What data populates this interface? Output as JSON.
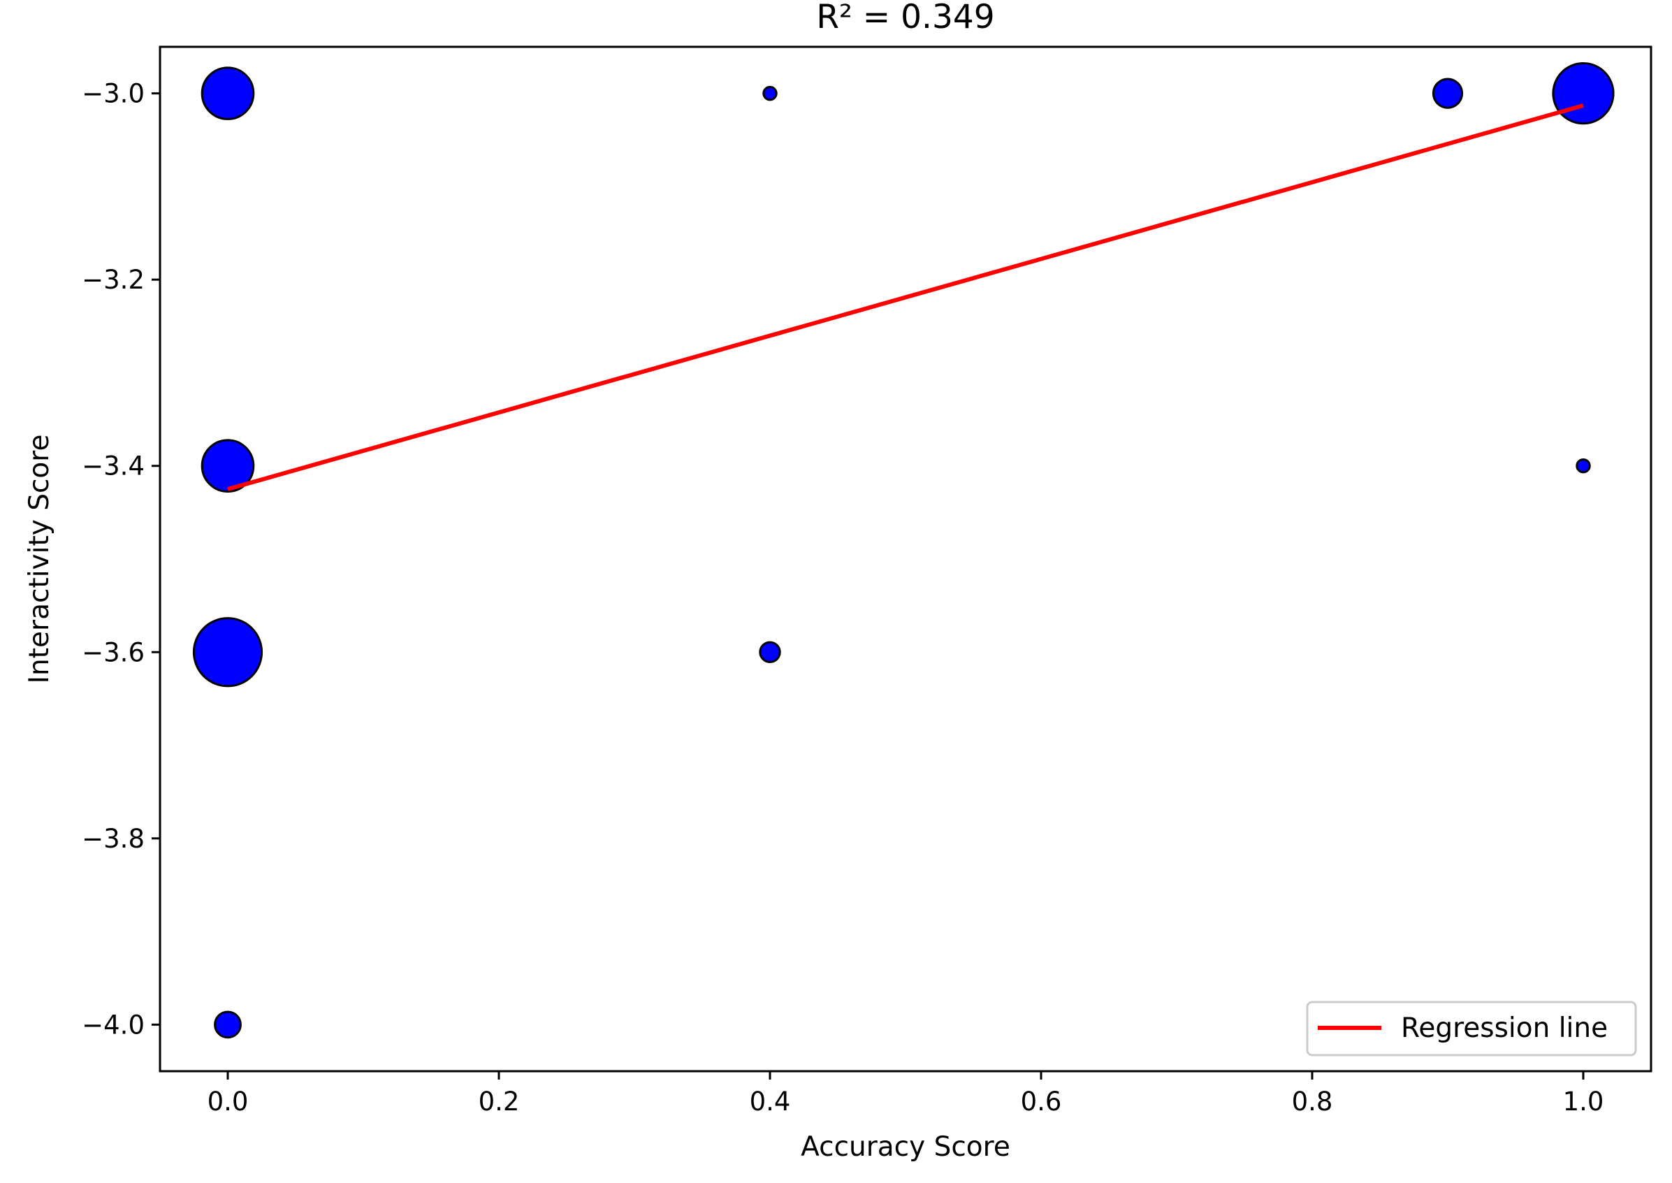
{
  "chart_data": {
    "type": "scatter",
    "title": "R² = 0.349",
    "xlabel": "Accuracy Score",
    "ylabel": "Interactivity Score",
    "xlim": [
      -0.05,
      1.05
    ],
    "ylim": [
      -4.05,
      -2.95
    ],
    "xticks": [
      0.0,
      0.2,
      0.4,
      0.6,
      0.8,
      1.0
    ],
    "xtick_labels": [
      "0.0",
      "0.2",
      "0.4",
      "0.6",
      "0.8",
      "1.0"
    ],
    "yticks": [
      -3.0,
      -3.2,
      -3.4,
      -3.6,
      -3.8,
      -4.0
    ],
    "ytick_labels": [
      "−3.0",
      "−3.2",
      "−3.4",
      "−3.6",
      "−3.8",
      "−4.0"
    ],
    "grid": false,
    "points": [
      {
        "x": 0.0,
        "y": -3.0,
        "size": 8
      },
      {
        "x": 0.0,
        "y": -3.4,
        "size": 8
      },
      {
        "x": 0.0,
        "y": -3.6,
        "size": 14
      },
      {
        "x": 0.0,
        "y": -4.0,
        "size": 2
      },
      {
        "x": 0.4,
        "y": -3.0,
        "size": 0.5
      },
      {
        "x": 0.4,
        "y": -3.6,
        "size": 1.2
      },
      {
        "x": 0.9,
        "y": -3.0,
        "size": 2.5
      },
      {
        "x": 1.0,
        "y": -3.0,
        "size": 11
      },
      {
        "x": 1.0,
        "y": -3.4,
        "size": 0.5
      }
    ],
    "point_color": "#0000ff",
    "point_edge_color": "#000000",
    "regression_line": {
      "label": "Regression line",
      "color": "#ff0000",
      "x": [
        0.0,
        1.0
      ],
      "y": [
        -3.425,
        -3.013
      ]
    },
    "legend_position": "lower-right"
  }
}
